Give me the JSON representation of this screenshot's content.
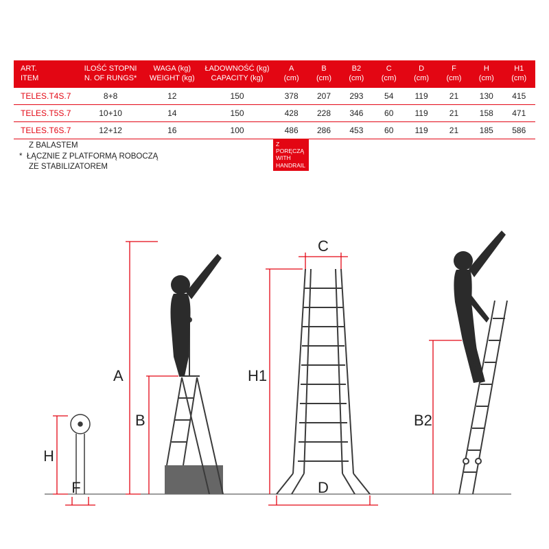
{
  "table": {
    "header_bg": "#e30613",
    "header_fg": "#ffffff",
    "row_border": "#e30613",
    "item_color": "#e30613",
    "columns": [
      {
        "l1": "ART.",
        "l2": "ITEM"
      },
      {
        "l1": "ILOŚĆ STOPNI",
        "l2": "N. OF RUNGS*"
      },
      {
        "l1": "WAGA (kg)",
        "l2": "WEIGHT  (kg)"
      },
      {
        "l1": "ŁADOWNOŚĆ (kg)",
        "l2": "CAPACITY (kg)"
      },
      {
        "l1": "A",
        "l2": "(cm)"
      },
      {
        "l1": "B",
        "l2": "(cm)"
      },
      {
        "l1": "B2",
        "l2": "(cm)"
      },
      {
        "l1": "C",
        "l2": "(cm)"
      },
      {
        "l1": "D",
        "l2": "(cm)"
      },
      {
        "l1": "F",
        "l2": "(cm)"
      },
      {
        "l1": "H",
        "l2": "(cm)"
      },
      {
        "l1": "H1",
        "l2": "(cm)"
      }
    ],
    "rows": [
      {
        "item": "TELES.T4S.7",
        "rungs": "8+8",
        "wt": "12",
        "cap": "150",
        "A": "378",
        "B": "207",
        "B2": "293",
        "C": "54",
        "D": "119",
        "F": "21",
        "H": "130",
        "H1": "415"
      },
      {
        "item": "TELES.T5S.7",
        "rungs": "10+10",
        "wt": "14",
        "cap": "150",
        "A": "428",
        "B": "228",
        "B2": "346",
        "C": "60",
        "D": "119",
        "F": "21",
        "H": "158",
        "H1": "471"
      },
      {
        "item": "TELES.T6S.7",
        "rungs": "12+12",
        "wt": "16",
        "cap": "100",
        "A": "486",
        "B": "286",
        "B2": "453",
        "C": "60",
        "D": "119",
        "F": "21",
        "H": "185",
        "H1": "586"
      }
    ]
  },
  "footnotes": {
    "line1": "Z BALASTEM",
    "line2_prefix": "*",
    "line2": "ŁĄCZNIE Z PLATFORMĄ ROBOCZĄ",
    "line3": "ZE STABILIZATOREM"
  },
  "handrail_badge": {
    "l1": "Z PORĘCZĄ",
    "l2": "WITH",
    "l3": "HANDRAIL"
  },
  "diagram": {
    "stroke": "#3a3a3a",
    "dim_stroke": "#e30613",
    "dim_text": "#222222",
    "labels": {
      "A": "A",
      "B": "B",
      "B2": "B2",
      "C": "C",
      "D": "D",
      "F": "F",
      "H": "H",
      "H1": "H1"
    }
  }
}
